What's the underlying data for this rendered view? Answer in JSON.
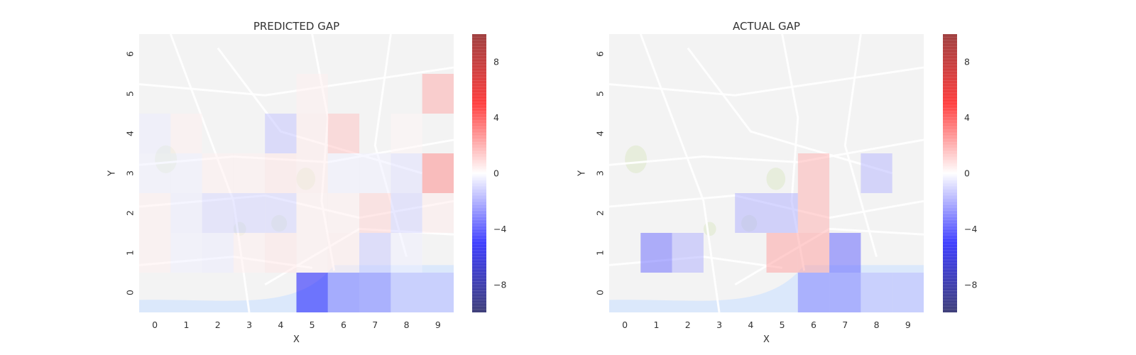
{
  "colors": {
    "page_bg": "#ffffff",
    "map_bg": "#f3f3f3",
    "map_road": "#ffffff",
    "map_water": "#dbe8fb",
    "map_park": "#e3ebd6",
    "negative": "#0000ff",
    "neutral": "#ffffff",
    "positive": "#ff0000"
  },
  "chart_data": [
    {
      "type": "heatmap",
      "title": "PREDICTED GAP",
      "xlabel": "X",
      "ylabel": "Y",
      "x": [
        0,
        1,
        2,
        3,
        4,
        5,
        6,
        7,
        8,
        9
      ],
      "y": [
        0,
        1,
        2,
        3,
        4,
        5,
        6
      ],
      "background": "city street map",
      "colormap": "seismic (blue-white-red)",
      "vmin": -10,
      "vmax": 10,
      "colorbar_ticks": [
        -8,
        -4,
        0,
        4,
        8
      ],
      "colorbar_tick_labels": [
        "−8",
        "−4",
        "0",
        "4",
        "8"
      ],
      "grid": false,
      "cells": [
        {
          "x": 5,
          "y": 0,
          "value": -5.0
        },
        {
          "x": 6,
          "y": 0,
          "value": -2.8
        },
        {
          "x": 7,
          "y": 0,
          "value": -2.6
        },
        {
          "x": 8,
          "y": 0,
          "value": -1.4
        },
        {
          "x": 9,
          "y": 0,
          "value": -1.4
        },
        {
          "x": 0,
          "y": 1,
          "value": 0.3
        },
        {
          "x": 1,
          "y": 1,
          "value": -0.3
        },
        {
          "x": 2,
          "y": 1,
          "value": -0.4
        },
        {
          "x": 3,
          "y": 1,
          "value": 0.3
        },
        {
          "x": 4,
          "y": 1,
          "value": 0.5
        },
        {
          "x": 5,
          "y": 1,
          "value": 0.3
        },
        {
          "x": 6,
          "y": 1,
          "value": 0.4
        },
        {
          "x": 7,
          "y": 1,
          "value": -1.1
        },
        {
          "x": 8,
          "y": 1,
          "value": -0.3
        },
        {
          "x": 0,
          "y": 2,
          "value": 0.3
        },
        {
          "x": 1,
          "y": 2,
          "value": -0.4
        },
        {
          "x": 2,
          "y": 2,
          "value": -0.8
        },
        {
          "x": 3,
          "y": 2,
          "value": -0.9
        },
        {
          "x": 4,
          "y": 2,
          "value": -0.9
        },
        {
          "x": 5,
          "y": 2,
          "value": 0.3
        },
        {
          "x": 6,
          "y": 2,
          "value": 0.3
        },
        {
          "x": 7,
          "y": 2,
          "value": 0.9
        },
        {
          "x": 8,
          "y": 2,
          "value": -0.9
        },
        {
          "x": 9,
          "y": 2,
          "value": 0.4
        },
        {
          "x": 0,
          "y": 3,
          "value": -0.3
        },
        {
          "x": 1,
          "y": 3,
          "value": -0.3
        },
        {
          "x": 2,
          "y": 3,
          "value": 0.3
        },
        {
          "x": 3,
          "y": 3,
          "value": 0.3
        },
        {
          "x": 4,
          "y": 3,
          "value": 0.5
        },
        {
          "x": 5,
          "y": 3,
          "value": 0.4
        },
        {
          "x": 6,
          "y": 3,
          "value": -0.3
        },
        {
          "x": 7,
          "y": 3,
          "value": -0.3
        },
        {
          "x": 8,
          "y": 3,
          "value": -0.6
        },
        {
          "x": 9,
          "y": 3,
          "value": 2.4
        },
        {
          "x": 0,
          "y": 4,
          "value": -0.4
        },
        {
          "x": 1,
          "y": 4,
          "value": 0.3
        },
        {
          "x": 4,
          "y": 4,
          "value": -1.2
        },
        {
          "x": 5,
          "y": 4,
          "value": 0.4
        },
        {
          "x": 6,
          "y": 4,
          "value": 1.2
        },
        {
          "x": 8,
          "y": 4,
          "value": 0.2
        },
        {
          "x": 5,
          "y": 5,
          "value": 0.3
        },
        {
          "x": 9,
          "y": 5,
          "value": 1.7
        }
      ]
    },
    {
      "type": "heatmap",
      "title": "ACTUAL GAP",
      "xlabel": "X",
      "ylabel": "Y",
      "x": [
        0,
        1,
        2,
        3,
        4,
        5,
        6,
        7,
        8,
        9
      ],
      "y": [
        0,
        1,
        2,
        3,
        4,
        5,
        6
      ],
      "background": "city street map",
      "colormap": "seismic (blue-white-red)",
      "vmin": -10,
      "vmax": 10,
      "colorbar_ticks": [
        -8,
        -4,
        0,
        4,
        8
      ],
      "colorbar_tick_labels": [
        "−8",
        "−4",
        "0",
        "4",
        "8"
      ],
      "grid": false,
      "cells": [
        {
          "x": 6,
          "y": 0,
          "value": -2.6
        },
        {
          "x": 7,
          "y": 0,
          "value": -2.6
        },
        {
          "x": 8,
          "y": 0,
          "value": -1.4
        },
        {
          "x": 9,
          "y": 0,
          "value": -1.4
        },
        {
          "x": 1,
          "y": 1,
          "value": -3.0
        },
        {
          "x": 2,
          "y": 1,
          "value": -1.6
        },
        {
          "x": 5,
          "y": 1,
          "value": 1.9
        },
        {
          "x": 6,
          "y": 1,
          "value": 1.9
        },
        {
          "x": 7,
          "y": 1,
          "value": -3.2
        },
        {
          "x": 4,
          "y": 2,
          "value": -1.6
        },
        {
          "x": 5,
          "y": 2,
          "value": -1.6
        },
        {
          "x": 6,
          "y": 2,
          "value": 1.6
        },
        {
          "x": 6,
          "y": 3,
          "value": 1.6
        },
        {
          "x": 8,
          "y": 3,
          "value": -1.5
        }
      ]
    }
  ]
}
